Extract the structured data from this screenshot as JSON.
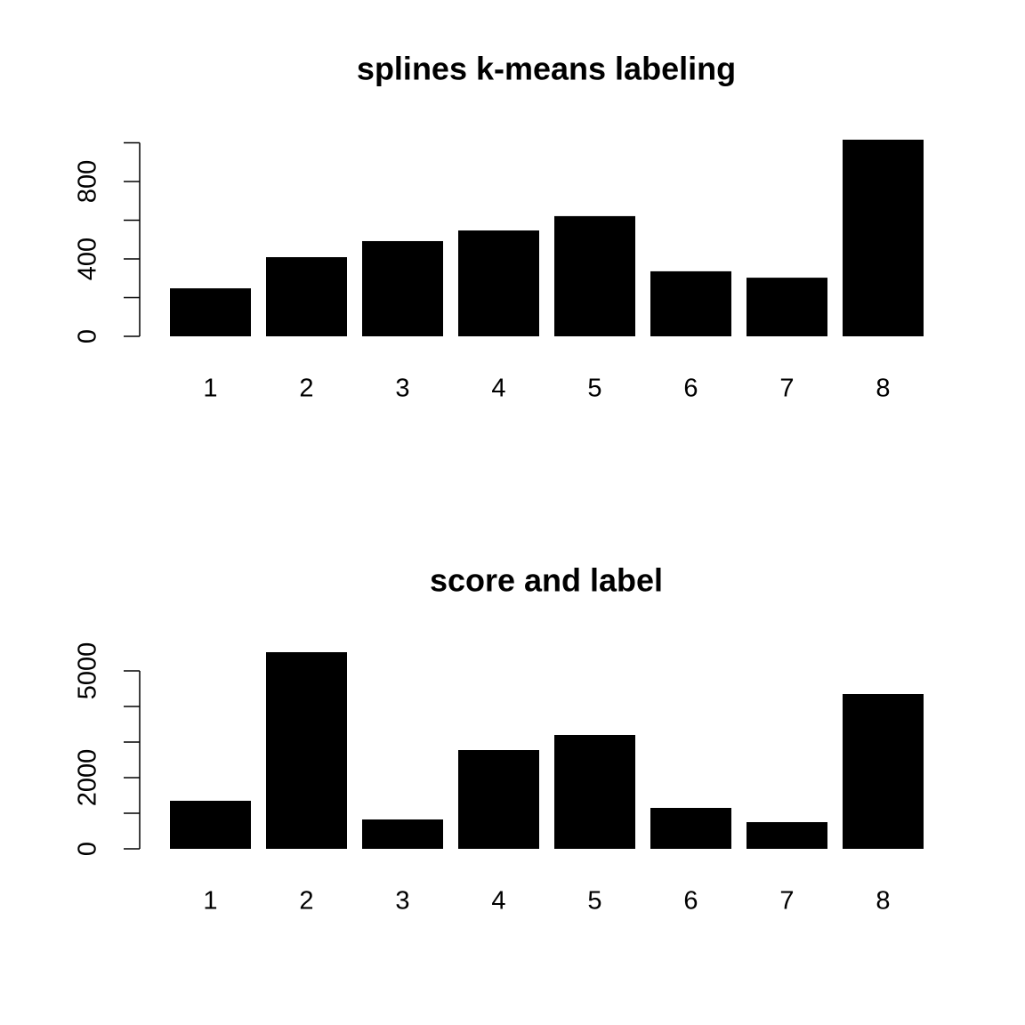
{
  "chart_data": [
    {
      "type": "bar",
      "title": "splines k-means labeling",
      "categories": [
        "1",
        "2",
        "3",
        "4",
        "5",
        "6",
        "7",
        "8"
      ],
      "values": [
        248,
        409,
        492,
        547,
        621,
        336,
        303,
        1016
      ],
      "color": "#000000",
      "ylim": [
        0,
        1016
      ],
      "yticks": [
        0,
        400,
        800
      ],
      "yminorticks": [
        200,
        600,
        1000
      ],
      "grid": false
    },
    {
      "type": "bar",
      "title": "score and label",
      "categories": [
        "1",
        "2",
        "3",
        "4",
        "5",
        "6",
        "7",
        "8"
      ],
      "values": [
        1350,
        5525,
        825,
        2775,
        3200,
        1150,
        750,
        4350
      ],
      "color": "#000000",
      "ylim": [
        0,
        5525
      ],
      "yticks": [
        0,
        2000,
        5000
      ],
      "yminorticks": [
        1000,
        3000,
        4000
      ],
      "grid": false
    }
  ]
}
